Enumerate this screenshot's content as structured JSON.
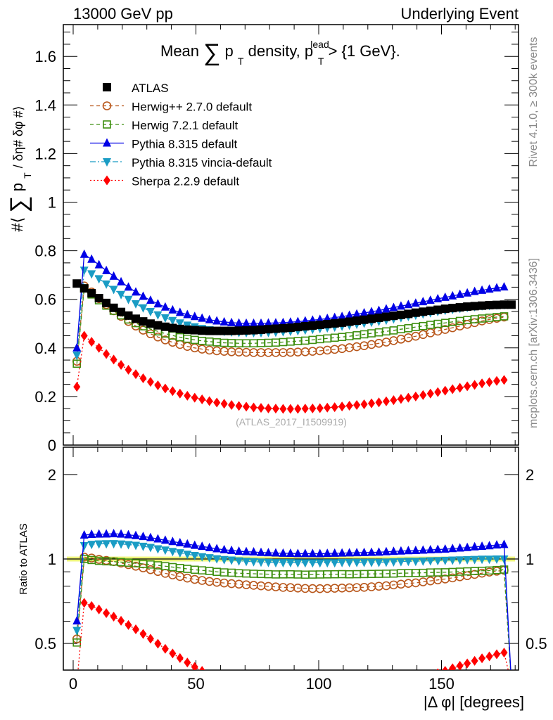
{
  "header": {
    "left": "13000 GeV pp",
    "right": "Underlying Event"
  },
  "side_text": {
    "rivet": "Rivet 4.1.0, ≥ 300k events",
    "mcplots": "mcplots.cern.ch [arXiv:1306.3436]"
  },
  "watermark": "(ATLAS_2017_I1509919)",
  "chart_data": {
    "type": "scatter",
    "title": "Mean ∑ p_T density, p_T^lead > {1 GeV}.",
    "title_parts": {
      "pre": "Mean",
      "sum": "∑",
      "p": "p",
      "sub": "T",
      "mid": "density, p",
      "sup": "lead",
      "sub2": "T",
      "post": " > {1 GeV}."
    },
    "ylabel": "#⟨ ∑ p_T / δη# δφ #⟩",
    "ylabel_parts": {
      "pre": "#⟨",
      "sum": "∑",
      "p": "p",
      "sub": "T",
      "post": "/ δη# δφ #⟩"
    },
    "ratio_ylabel": "Ratio to ATLAS",
    "xlabel": "|Δ φ| [degrees]",
    "xlim": [
      -4.2,
      181.5
    ],
    "ylim": [
      0,
      1.73
    ],
    "ratio_ylim": [
      0.4,
      2.5
    ],
    "ratio_scale": "log",
    "x_ticks": [
      {
        "v": 0,
        "label": "0"
      },
      {
        "v": 50,
        "label": "50"
      },
      {
        "v": 100,
        "label": "100"
      },
      {
        "v": 150,
        "label": "150"
      }
    ],
    "y_ticks": [
      {
        "v": 0,
        "label": "0"
      },
      {
        "v": 0.2,
        "label": "0.2"
      },
      {
        "v": 0.4,
        "label": "0.4"
      },
      {
        "v": 0.6,
        "label": "0.6"
      },
      {
        "v": 0.8,
        "label": "0.8"
      },
      {
        "v": 1,
        "label": "1"
      },
      {
        "v": 1.2,
        "label": "1.2"
      },
      {
        "v": 1.4,
        "label": "1.4"
      },
      {
        "v": 1.6,
        "label": "1.6"
      }
    ],
    "ratio_ticks": [
      {
        "v": 0.5,
        "label": "0.5"
      },
      {
        "v": 1,
        "label": "1"
      },
      {
        "v": 2,
        "label": "2"
      }
    ],
    "legend_position": "top-left",
    "x": [
      1.5,
      4.5,
      7.5,
      10.5,
      13.5,
      16.5,
      19.5,
      22.5,
      25.5,
      28.5,
      31.5,
      34.5,
      37.5,
      40.5,
      43.5,
      46.5,
      49.5,
      52.5,
      55.5,
      58.5,
      61.5,
      64.5,
      67.5,
      70.5,
      73.5,
      76.5,
      79.5,
      82.5,
      85.5,
      88.5,
      91.5,
      94.5,
      97.5,
      100.5,
      103.5,
      106.5,
      109.5,
      112.5,
      115.5,
      118.5,
      121.5,
      124.5,
      127.5,
      130.5,
      133.5,
      136.5,
      139.5,
      142.5,
      145.5,
      148.5,
      151.5,
      154.5,
      157.5,
      160.5,
      163.5,
      166.5,
      169.5,
      172.5,
      175.5,
      178.5
    ],
    "series": [
      {
        "name": "ATLAS",
        "color": "#000000",
        "marker": "square-filled",
        "line": "none",
        "values": [
          0.665,
          0.645,
          0.625,
          0.605,
          0.585,
          0.565,
          0.548,
          0.533,
          0.52,
          0.509,
          0.5,
          0.493,
          0.487,
          0.482,
          0.478,
          0.475,
          0.473,
          0.471,
          0.47,
          0.47,
          0.47,
          0.47,
          0.471,
          0.472,
          0.473,
          0.475,
          0.477,
          0.479,
          0.481,
          0.483,
          0.486,
          0.489,
          0.492,
          0.495,
          0.498,
          0.501,
          0.504,
          0.508,
          0.512,
          0.516,
          0.52,
          0.524,
          0.528,
          0.532,
          0.536,
          0.54,
          0.545,
          0.549,
          0.553,
          0.557,
          0.561,
          0.564,
          0.567,
          0.57,
          0.572,
          0.574,
          0.576,
          0.577,
          0.578,
          0.578
        ]
      },
      {
        "name": "Herwig++ 2.7.0 default",
        "color": "#b8561a",
        "marker": "circle-open",
        "line": "dashed",
        "values": [
          0.345,
          0.655,
          0.63,
          0.603,
          0.578,
          0.553,
          0.53,
          0.509,
          0.49,
          0.473,
          0.458,
          0.445,
          0.433,
          0.423,
          0.414,
          0.406,
          0.4,
          0.395,
          0.391,
          0.388,
          0.386,
          0.384,
          0.383,
          0.382,
          0.381,
          0.381,
          0.381,
          0.381,
          0.381,
          0.382,
          0.383,
          0.384,
          0.386,
          0.388,
          0.391,
          0.394,
          0.397,
          0.401,
          0.405,
          0.409,
          0.414,
          0.419,
          0.424,
          0.43,
          0.436,
          0.442,
          0.448,
          0.455,
          0.462,
          0.469,
          0.476,
          0.483,
          0.49,
          0.497,
          0.504,
          0.511,
          0.517,
          0.522,
          0.527,
          0
        ]
      },
      {
        "name": "Herwig 7.2.1 default",
        "color": "#3f8f10",
        "marker": "square-open",
        "line": "dashed",
        "values": [
          0.335,
          0.645,
          0.62,
          0.596,
          0.574,
          0.553,
          0.534,
          0.517,
          0.502,
          0.489,
          0.478,
          0.468,
          0.459,
          0.451,
          0.444,
          0.438,
          0.433,
          0.429,
          0.426,
          0.423,
          0.421,
          0.42,
          0.419,
          0.419,
          0.419,
          0.42,
          0.421,
          0.422,
          0.424,
          0.426,
          0.428,
          0.43,
          0.433,
          0.436,
          0.439,
          0.442,
          0.445,
          0.448,
          0.452,
          0.456,
          0.46,
          0.464,
          0.468,
          0.472,
          0.477,
          0.481,
          0.486,
          0.49,
          0.495,
          0.499,
          0.503,
          0.507,
          0.511,
          0.515,
          0.518,
          0.521,
          0.524,
          0.527,
          0.53,
          0
        ]
      },
      {
        "name": "Pythia 8.315 default",
        "color": "#0000e6",
        "marker": "triangle-up",
        "line": "solid",
        "values": [
          0.4,
          0.785,
          0.765,
          0.742,
          0.718,
          0.695,
          0.672,
          0.65,
          0.63,
          0.612,
          0.596,
          0.581,
          0.568,
          0.556,
          0.546,
          0.537,
          0.529,
          0.522,
          0.516,
          0.511,
          0.507,
          0.504,
          0.502,
          0.501,
          0.501,
          0.501,
          0.502,
          0.503,
          0.504,
          0.506,
          0.508,
          0.511,
          0.514,
          0.517,
          0.521,
          0.525,
          0.529,
          0.534,
          0.539,
          0.544,
          0.549,
          0.554,
          0.56,
          0.566,
          0.572,
          0.578,
          0.584,
          0.59,
          0.596,
          0.602,
          0.608,
          0.614,
          0.62,
          0.626,
          0.632,
          0.637,
          0.642,
          0.647,
          0.651,
          0
        ]
      },
      {
        "name": "Pythia 8.315 vincia-default",
        "color": "#1a9cc4",
        "marker": "triangle-down",
        "line": "dashdot",
        "values": [
          0.37,
          0.72,
          0.705,
          0.685,
          0.663,
          0.641,
          0.62,
          0.6,
          0.582,
          0.565,
          0.55,
          0.536,
          0.524,
          0.513,
          0.503,
          0.494,
          0.487,
          0.48,
          0.475,
          0.471,
          0.468,
          0.466,
          0.464,
          0.463,
          0.463,
          0.463,
          0.464,
          0.465,
          0.467,
          0.469,
          0.471,
          0.474,
          0.477,
          0.48,
          0.483,
          0.486,
          0.49,
          0.494,
          0.498,
          0.502,
          0.506,
          0.51,
          0.515,
          0.52,
          0.525,
          0.53,
          0.535,
          0.54,
          0.545,
          0.55,
          0.555,
          0.559,
          0.563,
          0.567,
          0.57,
          0.573,
          0.575,
          0.577,
          0.578,
          0
        ]
      },
      {
        "name": "Sherpa 2.2.9 default",
        "color": "#ff0000",
        "marker": "diamond",
        "line": "dotted",
        "values": [
          0.24,
          0.45,
          0.425,
          0.4,
          0.375,
          0.352,
          0.33,
          0.31,
          0.292,
          0.275,
          0.26,
          0.246,
          0.233,
          0.222,
          0.212,
          0.203,
          0.195,
          0.188,
          0.181,
          0.175,
          0.17,
          0.165,
          0.161,
          0.158,
          0.155,
          0.153,
          0.151,
          0.15,
          0.149,
          0.149,
          0.149,
          0.15,
          0.151,
          0.152,
          0.154,
          0.156,
          0.159,
          0.162,
          0.165,
          0.168,
          0.172,
          0.176,
          0.18,
          0.185,
          0.19,
          0.195,
          0.2,
          0.206,
          0.212,
          0.218,
          0.224,
          0.23,
          0.236,
          0.242,
          0.248,
          0.254,
          0.259,
          0.264,
          0.268,
          0
        ]
      }
    ]
  }
}
